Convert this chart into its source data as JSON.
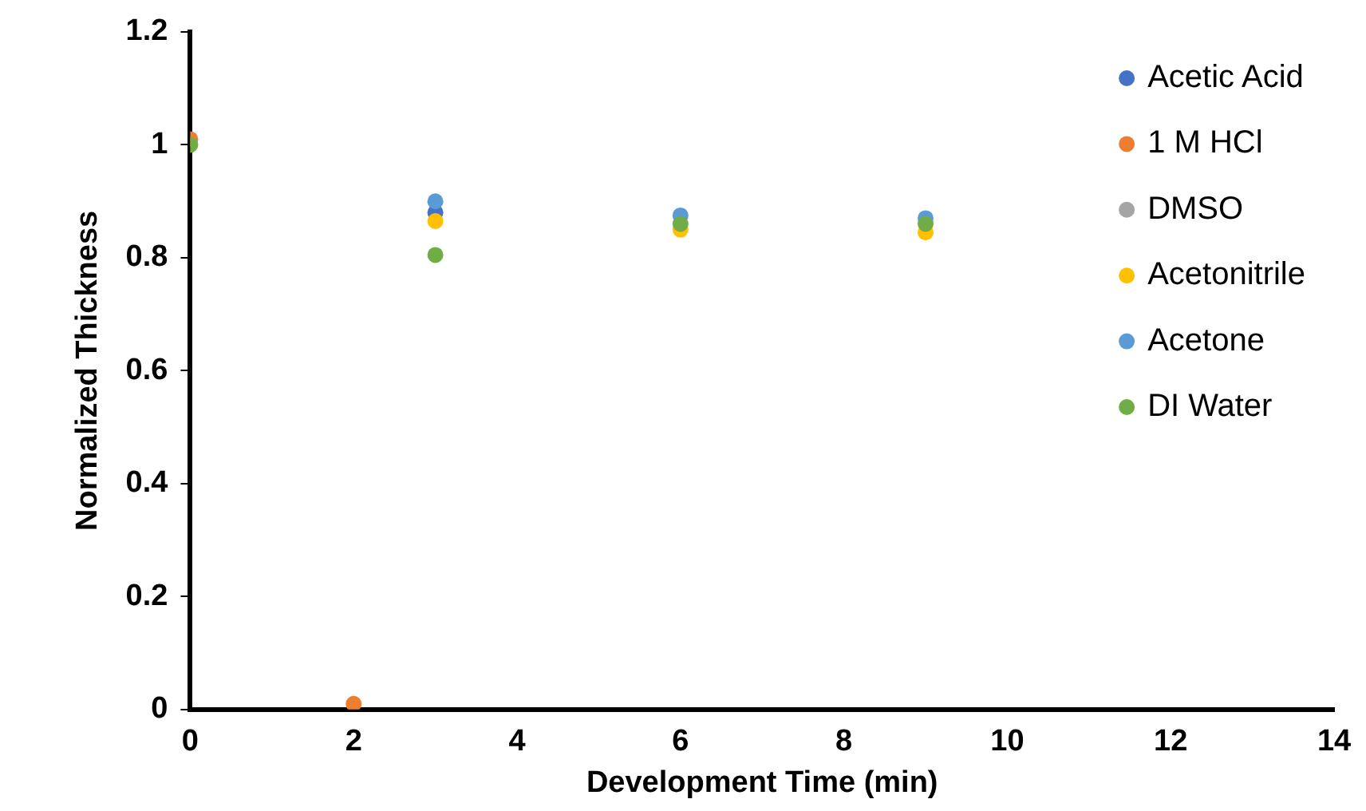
{
  "chart_data": {
    "type": "scatter",
    "xlabel": "Development Time (min)",
    "ylabel": "Normalized Thickness",
    "xlim": [
      0,
      14
    ],
    "xticks": [
      0,
      2,
      4,
      6,
      8,
      10,
      12,
      14
    ],
    "ylim": [
      0,
      1.2
    ],
    "yticks": [
      0,
      0.2,
      0.4,
      0.6,
      0.8,
      1,
      1.2
    ],
    "grid": false,
    "legend": "top right",
    "marker": "circle",
    "series": [
      {
        "name": "Acetic Acid",
        "color": "#4472c4",
        "x": [
          3
        ],
        "values": [
          0.88
        ]
      },
      {
        "name": "1 M HCl",
        "color": "#ed7d31",
        "x": [
          0,
          2
        ],
        "values": [
          1.01,
          0.01
        ]
      },
      {
        "name": "DMSO",
        "color": "#a5a5a5"
      },
      {
        "name": "Acetonitrile",
        "color": "#ffc000",
        "x": [
          3,
          6,
          9
        ],
        "values": [
          0.865,
          0.85,
          0.845
        ]
      },
      {
        "name": "Acetone",
        "color": "#5b9bd5",
        "x": [
          3,
          6,
          9
        ],
        "values": [
          0.9,
          0.875,
          0.87
        ]
      },
      {
        "name": "DI Water",
        "color": "#70ad47",
        "x": [
          0,
          3,
          6,
          9
        ],
        "values": [
          1,
          0.805,
          0.86,
          0.86
        ]
      }
    ]
  }
}
